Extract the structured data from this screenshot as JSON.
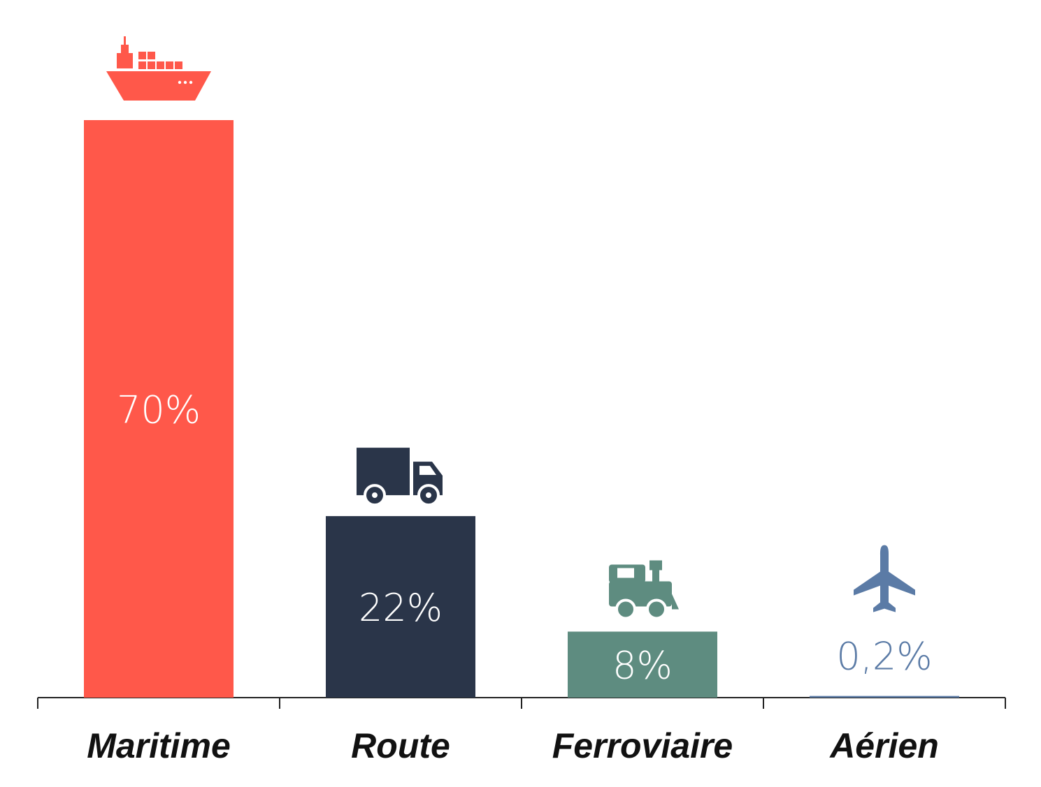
{
  "chart_data": {
    "type": "bar",
    "title": "",
    "xlabel": "",
    "ylabel": "",
    "ylim": [
      0,
      70
    ],
    "grid": false,
    "legend": "none",
    "categories": [
      "Maritime",
      "Route",
      "Ferroviaire",
      "Aérien"
    ],
    "values": [
      70,
      22,
      8,
      0.2
    ],
    "data_labels": [
      "70%",
      "22%",
      "8%",
      "0,2%"
    ],
    "icons": [
      "ship-icon",
      "truck-icon",
      "train-icon",
      "airplane-icon"
    ],
    "colors": [
      "#FF584A",
      "#2A3549",
      "#5E8C80",
      "#5B7BA6"
    ],
    "label_colors": [
      "#FFFFFF",
      "#FFFFFF",
      "#FFFFFF",
      "#5B7BA6"
    ]
  }
}
